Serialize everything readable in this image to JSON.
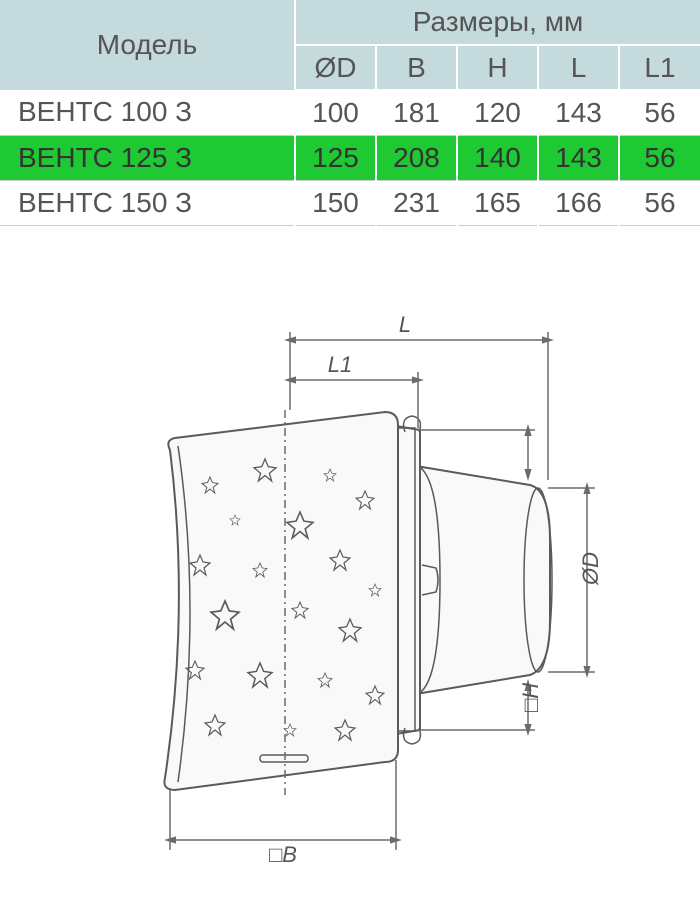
{
  "table": {
    "model_header": "Модель",
    "dimensions_header": "Размеры, мм",
    "columns": [
      "ØD",
      "B",
      "H",
      "L",
      "L1"
    ],
    "rows": [
      {
        "model": "ВЕНТС 100 З",
        "values": [
          "100",
          "181",
          "120",
          "143",
          "56"
        ],
        "highlight": false
      },
      {
        "model": "ВЕНТС 125 З",
        "values": [
          "125",
          "208",
          "140",
          "143",
          "56"
        ],
        "highlight": true
      },
      {
        "model": "ВЕНТС 150 З",
        "values": [
          "150",
          "231",
          "165",
          "166",
          "56"
        ],
        "highlight": false
      }
    ],
    "header_bg": "#c5dadd",
    "highlight_bg": "#1ec934",
    "text_color": "#555555",
    "font_size_header": 28,
    "font_size_body": 28
  },
  "diagram": {
    "labels": {
      "L": "L",
      "L1": "L1",
      "D": "ØD",
      "H": "□H",
      "B": "□B"
    },
    "line_color": "#5a5a5a",
    "dim_color": "#6b6b6b",
    "background": "#ffffff"
  }
}
